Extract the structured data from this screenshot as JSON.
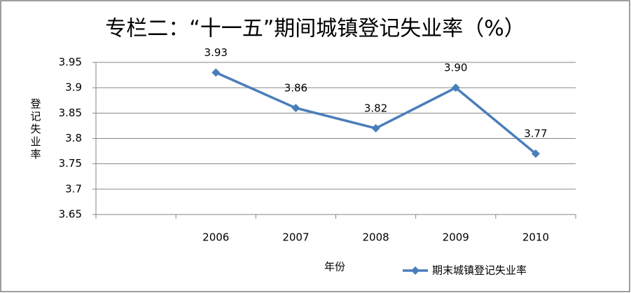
{
  "chart_data": {
    "type": "line",
    "title": "专栏二：“十一五”期间城镇登记失业率（%）",
    "y_label": "登记失业率",
    "x_label": "年份",
    "categories": [
      null,
      "2006",
      "2007",
      "2008",
      "2009",
      "2010"
    ],
    "series": [
      {
        "name": "期末城镇登记失业率",
        "color": "#4a7ebb",
        "values": [
          null,
          3.93,
          3.86,
          3.82,
          3.9,
          3.77
        ],
        "value_labels": [
          null,
          "3.93",
          "3.86",
          "3.82",
          "3.90",
          "3.77"
        ]
      }
    ],
    "ylim": [
      3.65,
      3.95
    ],
    "yticks": [
      3.65,
      3.7,
      3.75,
      3.8,
      3.85,
      3.9,
      3.95
    ],
    "grid": true,
    "legend": "bottom-right"
  }
}
